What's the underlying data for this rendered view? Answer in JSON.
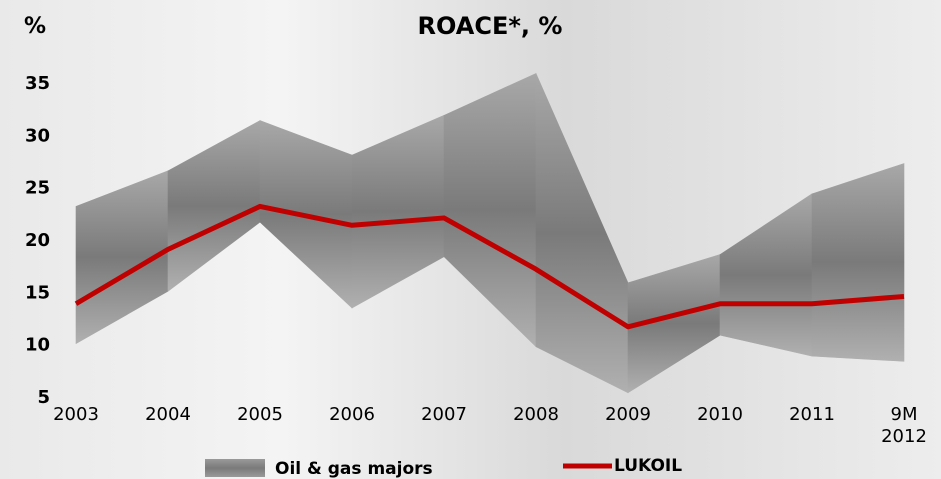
{
  "chart_data": {
    "type": "line",
    "title": "ROACE*, %",
    "y_label": "%",
    "categories": [
      "2003",
      "2004",
      "2005",
      "2006",
      "2007",
      "2008",
      "2009",
      "2010",
      "2011",
      "9M\n2012"
    ],
    "series": [
      {
        "name": "Oil & gas majors",
        "type": "range",
        "low": [
          10.2,
          15.2,
          21.8,
          13.6,
          18.5,
          9.9,
          5.5,
          11,
          9,
          8.5
        ],
        "high": [
          23.3,
          26.7,
          31.5,
          28.2,
          32,
          36,
          16,
          18.7,
          24.5,
          27.4
        ]
      },
      {
        "name": "LUKOIL",
        "type": "line",
        "color": "#c00000",
        "values": [
          14,
          19.2,
          23.3,
          21.5,
          22.2,
          17.3,
          11.8,
          14,
          14,
          14.7
        ]
      }
    ],
    "ylim": [
      5,
      37
    ],
    "yticks": [
      5,
      10,
      15,
      20,
      25,
      30,
      35
    ]
  }
}
